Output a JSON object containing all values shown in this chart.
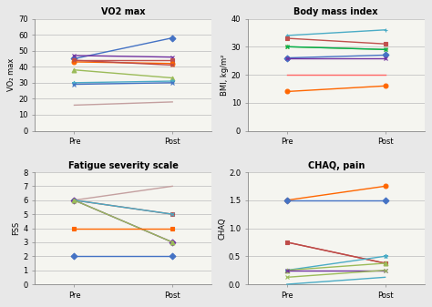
{
  "fig_bg": "#E8E8E8",
  "plot_bg": "#F5F5F0",
  "vo2max": {
    "title": "VO2 max",
    "ylabel": "VO₂ max",
    "ylim": [
      0,
      70
    ],
    "yticks": [
      0,
      10,
      20,
      30,
      40,
      50,
      60,
      70
    ],
    "series": [
      {
        "pre": 45,
        "post": 58,
        "color": "#4472C4",
        "marker": "D"
      },
      {
        "pre": 47,
        "post": 46,
        "color": "#7030A0",
        "marker": "x"
      },
      {
        "pre": 44,
        "post": 44,
        "color": "#C0504D",
        "marker": "s"
      },
      {
        "pre": 43,
        "post": 42,
        "color": "#FF6600",
        "marker": "o"
      },
      {
        "pre": 44,
        "post": 41,
        "color": "#BE4B48",
        "marker": "x"
      },
      {
        "pre": 38,
        "post": 33,
        "color": "#9BBB59",
        "marker": "^"
      },
      {
        "pre": 30,
        "post": 31,
        "color": "#4BACC6",
        "marker": "*"
      },
      {
        "pre": 29,
        "post": 30,
        "color": "#4472C4",
        "marker": "x"
      },
      {
        "pre": 16,
        "post": 18,
        "color": "#C4A0A0",
        "marker": ""
      }
    ]
  },
  "bmi": {
    "title": "Body mass index",
    "ylabel": "BMI, kg/m²",
    "ylim": [
      0,
      40
    ],
    "yticks": [
      0,
      10,
      20,
      30,
      40
    ],
    "series": [
      {
        "pre": 34,
        "post": 36,
        "color": "#4BACC6",
        "marker": "+"
      },
      {
        "pre": 33,
        "post": 31,
        "color": "#C0504D",
        "marker": "s"
      },
      {
        "pre": 30,
        "post": 29,
        "color": "#9BBB59",
        "marker": "*"
      },
      {
        "pre": 30,
        "post": 29,
        "color": "#00B050",
        "marker": "x"
      },
      {
        "pre": 26,
        "post": 27,
        "color": "#4472C4",
        "marker": "D"
      },
      {
        "pre": 26,
        "post": 26,
        "color": "#7030A0",
        "marker": "x"
      },
      {
        "pre": 20,
        "post": 20,
        "color": "#FF6666",
        "marker": ""
      },
      {
        "pre": 14,
        "post": 16,
        "color": "#FF6600",
        "marker": "o"
      }
    ]
  },
  "fss": {
    "title": "Fatigue severity scale",
    "ylabel": "FSS",
    "ylim": [
      0,
      8
    ],
    "yticks": [
      0,
      1,
      2,
      3,
      4,
      5,
      6,
      7,
      8
    ],
    "series": [
      {
        "pre": 6,
        "post": 7,
        "color": "#C4A0A0",
        "marker": ""
      },
      {
        "pre": 6,
        "post": 5,
        "color": "#C0504D",
        "marker": "s"
      },
      {
        "pre": 6,
        "post": 3,
        "color": "#7030A0",
        "marker": "D"
      },
      {
        "pre": 6,
        "post": 5,
        "color": "#4BACC6",
        "marker": "x"
      },
      {
        "pre": 6,
        "post": 3,
        "color": "#9BBB59",
        "marker": "^"
      },
      {
        "pre": 4,
        "post": 4,
        "color": "#FF6600",
        "marker": "s"
      },
      {
        "pre": 2,
        "post": 2,
        "color": "#4472C4",
        "marker": "D"
      }
    ]
  },
  "chaq": {
    "title": "CHAQ, pain",
    "ylabel": "CHAQ",
    "ylim": [
      0,
      2
    ],
    "yticks": [
      0,
      0.5,
      1.0,
      1.5,
      2.0
    ],
    "series": [
      {
        "pre": 1.5,
        "post": 1.75,
        "color": "#FF6600",
        "marker": "o"
      },
      {
        "pre": 1.5,
        "post": 1.5,
        "color": "#4472C4",
        "marker": "D"
      },
      {
        "pre": 0.75,
        "post": 0.375,
        "color": "#C0504D",
        "marker": "s"
      },
      {
        "pre": 0.75,
        "post": 0.375,
        "color": "#BE4B48",
        "marker": "x"
      },
      {
        "pre": 0.25,
        "post": 0.5,
        "color": "#4BACC6",
        "marker": "*"
      },
      {
        "pre": 0.25,
        "post": 0.375,
        "color": "#9BBB59",
        "marker": "^"
      },
      {
        "pre": 0.25,
        "post": 0.25,
        "color": "#7030A0",
        "marker": "x"
      },
      {
        "pre": 0.125,
        "post": 0.25,
        "color": "#9BBB59",
        "marker": "x"
      },
      {
        "pre": 0.0,
        "post": 0.125,
        "color": "#4BACC6",
        "marker": ""
      }
    ]
  }
}
